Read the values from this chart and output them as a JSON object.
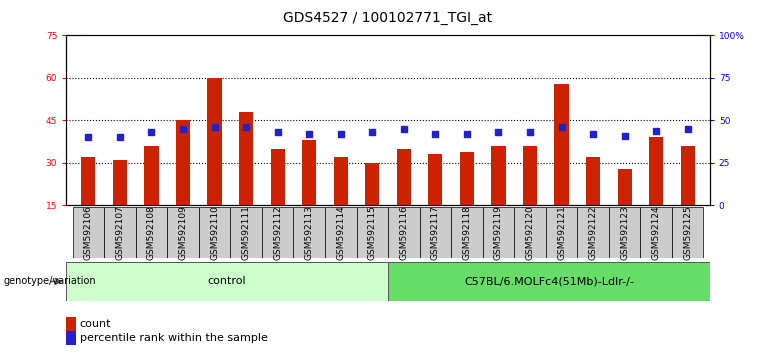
{
  "title": "GDS4527 / 100102771_TGI_at",
  "categories": [
    "GSM592106",
    "GSM592107",
    "GSM592108",
    "GSM592109",
    "GSM592110",
    "GSM592111",
    "GSM592112",
    "GSM592113",
    "GSM592114",
    "GSM592115",
    "GSM592116",
    "GSM592117",
    "GSM592118",
    "GSM592119",
    "GSM592120",
    "GSM592121",
    "GSM592122",
    "GSM592123",
    "GSM592124",
    "GSM592125"
  ],
  "count_values": [
    32,
    31,
    36,
    45,
    60,
    48,
    35,
    38,
    32,
    30,
    35,
    33,
    34,
    36,
    36,
    58,
    32,
    28,
    39,
    36
  ],
  "percentile_values": [
    40,
    40,
    43,
    45,
    46,
    46,
    43,
    42,
    42,
    43,
    45,
    42,
    42,
    43,
    43,
    46,
    42,
    41,
    44,
    45
  ],
  "ylim_left": [
    15,
    75
  ],
  "ylim_right": [
    0,
    100
  ],
  "yticks_left": [
    15,
    30,
    45,
    60,
    75
  ],
  "yticks_right": [
    0,
    25,
    50,
    75,
    100
  ],
  "ytick_labels_right": [
    "0",
    "25",
    "50",
    "75",
    "100%"
  ],
  "bar_color": "#CC2200",
  "dot_color": "#2222CC",
  "bg_color": "#FFFFFF",
  "grid_color": "#000000",
  "control_color": "#CCFFCC",
  "genotype_color": "#66DD66",
  "control_label": "control",
  "genotype_label": "C57BL/6.MOLFc4(51Mb)-Ldlr-/-",
  "genotype_row_label": "genotype/variation",
  "legend_count": "count",
  "legend_percentile": "percentile rank within the sample",
  "n_control": 10,
  "n_genotype": 10,
  "bar_width": 0.45,
  "dot_size": 22,
  "title_fontsize": 10,
  "tick_fontsize": 6.5,
  "label_fontsize": 8,
  "annotation_fontsize": 8,
  "xtick_box_color": "#CCCCCC"
}
